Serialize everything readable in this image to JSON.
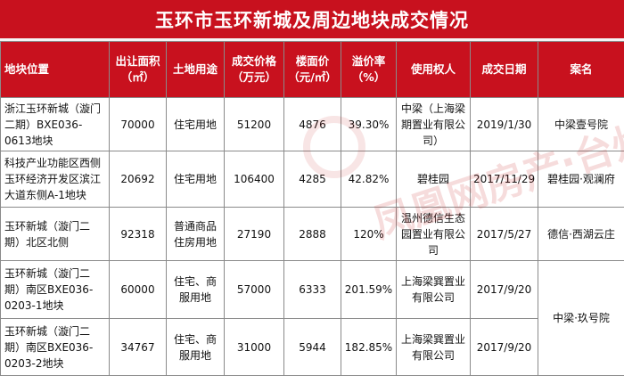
{
  "title": "玉环市玉环新城及周边地块成交情况",
  "headers": [
    "地块位置",
    "出让面积（㎡）",
    "土地用途",
    "成交价格（万元）",
    "楼面价（元/㎡）",
    "溢价率（%）",
    "使用权人",
    "成交日期",
    "案名"
  ],
  "rows": [
    {
      "location": "浙江玉环新城（漩门二期）BXE036-0613地块",
      "area": "70000",
      "use": "住宅用地",
      "price": "51200",
      "floor_price": "4876",
      "premium": "39.30%",
      "owner": "中梁（上海梁期置业有限公司）",
      "date": "2019/1/30",
      "project": "中梁壹号院"
    },
    {
      "location": "科技产业功能区西侧玉环经济开发区滨江大道东侧A-1地块",
      "area": "20692",
      "use": "住宅用地",
      "price": "106400",
      "floor_price": "4285",
      "premium": "42.82%",
      "owner": "碧桂园",
      "date": "2017/11/29",
      "project": "碧桂园·观澜府"
    },
    {
      "location": "玉环新城（漩门二期）北区北侧",
      "area": "92318",
      "use": "普通商品住房用地",
      "price": "27190",
      "floor_price": "2888",
      "premium": "120%",
      "owner": "温州德信生态园置业有限公司",
      "date": "2017/5/27",
      "project": "德信·西湖云庄"
    },
    {
      "location": "玉环新城（漩门二期）南区BXE036-0203-1地块",
      "area": "60000",
      "use": "住宅、商服用地",
      "price": "57000",
      "floor_price": "6333",
      "premium": "201.59%",
      "owner": "上海梁巽置业有限公司",
      "date": "2017/9/20",
      "project": "中梁·玖号院"
    },
    {
      "location": "玉环新城（漩门二期）南区BXE036-0203-2地块",
      "area": "34767",
      "use": "住宅、商服用地",
      "price": "31000",
      "floor_price": "5944",
      "premium": "182.85%",
      "owner": "上海梁巽置业有限公司",
      "date": "2017/9/20"
    }
  ],
  "watermark": "凤凰网房产·台州站",
  "colors": {
    "accent": "#c8111e",
    "border": "#8a8a8a"
  }
}
